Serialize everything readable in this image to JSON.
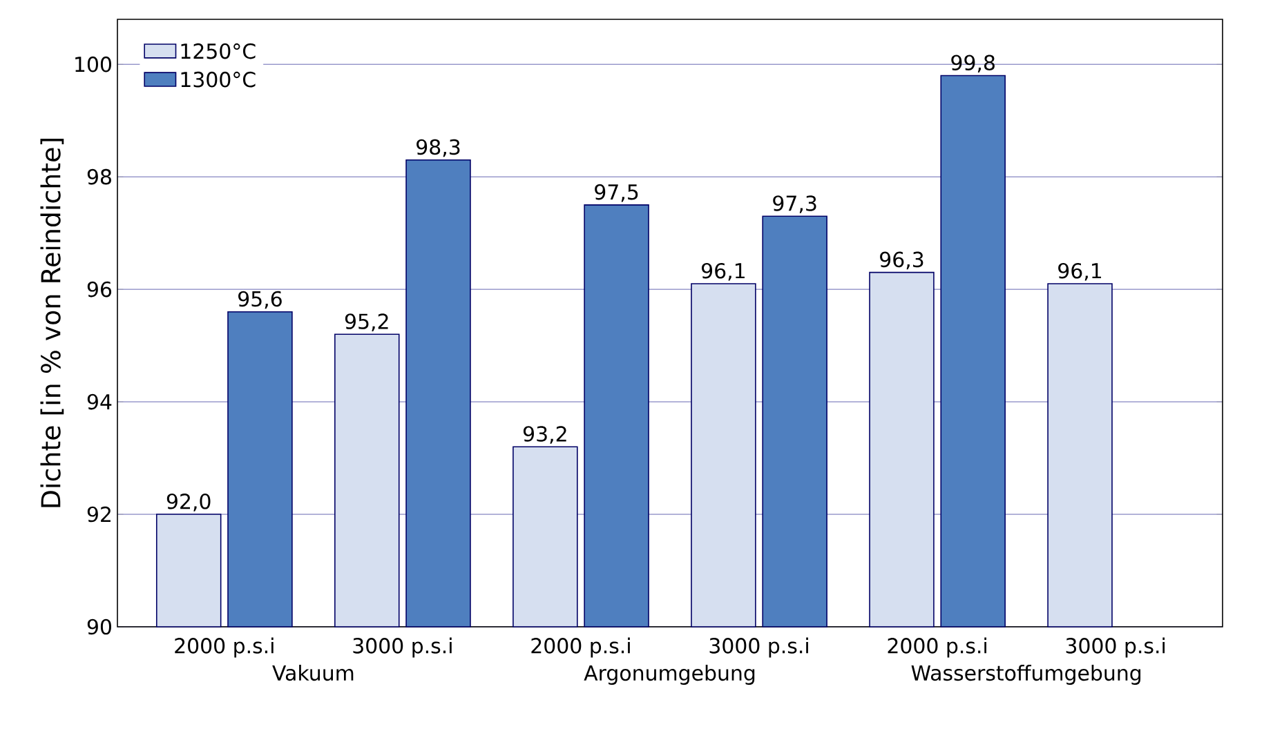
{
  "chart_data": {
    "type": "bar",
    "ylabel": "Dichte [in % von Reindichte]",
    "categories": [
      "2000 p.s.i",
      "3000 p.s.i",
      "2000 p.s.i",
      "3000 p.s.i",
      "2000 p.s.i",
      "3000 p.s.i"
    ],
    "series": [
      {
        "name": "1250°C",
        "color": "#d6dff0",
        "values": [
          92.0,
          95.2,
          93.2,
          96.1,
          96.3,
          96.1
        ],
        "value_labels": [
          "92,0",
          "95,2",
          "93,2",
          "96,1",
          "96,3",
          "96,1"
        ]
      },
      {
        "name": "1300°C",
        "color": "#4f7fbf",
        "values": [
          95.6,
          98.3,
          97.5,
          97.3,
          99.8,
          null
        ],
        "value_labels": [
          "95,6",
          "98,3",
          "97,5",
          "97,3",
          "99,8",
          null
        ]
      }
    ],
    "annotations": [
      "Vakuum",
      "Argonumgebung",
      "Wasserstoffumgebung"
    ],
    "ylim": [
      90,
      100.8
    ],
    "yticks": [
      90,
      92,
      94,
      96,
      98,
      100
    ],
    "grid": "y",
    "legend": "top left"
  }
}
